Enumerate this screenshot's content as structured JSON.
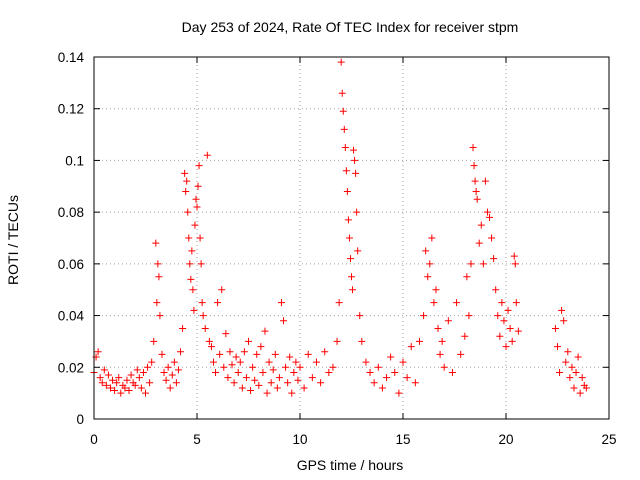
{
  "chart_data": {
    "type": "scatter",
    "title": "Day 253 of 2024, Rate Of TEC Index for receiver stpm",
    "xlabel": "GPS time / hours",
    "ylabel": "ROTI / TECUs",
    "xlim": [
      0,
      25
    ],
    "ylim": [
      0,
      0.14
    ],
    "xticks": [
      0,
      5,
      10,
      15,
      20,
      25
    ],
    "yticks": [
      0,
      0.02,
      0.04,
      0.06,
      0.08,
      0.1,
      0.12,
      0.14
    ],
    "xtick_labels": [
      "0",
      "5",
      "10",
      "15",
      "20",
      "25"
    ],
    "ytick_labels": [
      "0",
      "0.02",
      "0.04",
      "0.06",
      "0.08",
      "0.1",
      "0.12",
      "0.14"
    ],
    "grid": true,
    "marker": "plus",
    "color": "#ff0000",
    "series": [
      {
        "name": "ROTI",
        "points": [
          [
            0.0,
            0.018
          ],
          [
            0.1,
            0.024
          ],
          [
            0.2,
            0.026
          ],
          [
            0.3,
            0.016
          ],
          [
            0.4,
            0.014
          ],
          [
            0.5,
            0.019
          ],
          [
            0.6,
            0.013
          ],
          [
            0.7,
            0.017
          ],
          [
            0.8,
            0.012
          ],
          [
            0.9,
            0.015
          ],
          [
            1.0,
            0.011
          ],
          [
            1.1,
            0.014
          ],
          [
            1.2,
            0.016
          ],
          [
            1.3,
            0.01
          ],
          [
            1.4,
            0.013
          ],
          [
            1.5,
            0.012
          ],
          [
            1.6,
            0.015
          ],
          [
            1.7,
            0.011
          ],
          [
            1.8,
            0.017
          ],
          [
            1.9,
            0.014
          ],
          [
            2.0,
            0.013
          ],
          [
            2.1,
            0.019
          ],
          [
            2.2,
            0.016
          ],
          [
            2.3,
            0.012
          ],
          [
            2.4,
            0.018
          ],
          [
            2.5,
            0.01
          ],
          [
            2.6,
            0.02
          ],
          [
            2.7,
            0.014
          ],
          [
            2.8,
            0.022
          ],
          [
            2.9,
            0.03
          ],
          [
            3.0,
            0.068
          ],
          [
            3.05,
            0.045
          ],
          [
            3.1,
            0.06
          ],
          [
            3.15,
            0.055
          ],
          [
            3.2,
            0.04
          ],
          [
            3.3,
            0.025
          ],
          [
            3.4,
            0.018
          ],
          [
            3.5,
            0.015
          ],
          [
            3.6,
            0.02
          ],
          [
            3.7,
            0.012
          ],
          [
            3.8,
            0.017
          ],
          [
            3.9,
            0.022
          ],
          [
            4.0,
            0.014
          ],
          [
            4.1,
            0.019
          ],
          [
            4.2,
            0.026
          ],
          [
            4.3,
            0.035
          ],
          [
            4.4,
            0.095
          ],
          [
            4.45,
            0.088
          ],
          [
            4.5,
            0.092
          ],
          [
            4.55,
            0.08
          ],
          [
            4.6,
            0.07
          ],
          [
            4.65,
            0.06
          ],
          [
            4.7,
            0.054
          ],
          [
            4.75,
            0.065
          ],
          [
            4.8,
            0.05
          ],
          [
            4.85,
            0.042
          ],
          [
            4.9,
            0.075
          ],
          [
            4.95,
            0.085
          ],
          [
            5.0,
            0.082
          ],
          [
            5.05,
            0.09
          ],
          [
            5.1,
            0.098
          ],
          [
            5.15,
            0.07
          ],
          [
            5.2,
            0.06
          ],
          [
            5.25,
            0.045
          ],
          [
            5.3,
            0.04
          ],
          [
            5.5,
            0.102
          ],
          [
            5.4,
            0.035
          ],
          [
            5.6,
            0.03
          ],
          [
            5.7,
            0.028
          ],
          [
            5.8,
            0.022
          ],
          [
            5.9,
            0.018
          ],
          [
            6.0,
            0.045
          ],
          [
            6.1,
            0.025
          ],
          [
            6.2,
            0.05
          ],
          [
            6.3,
            0.02
          ],
          [
            6.4,
            0.033
          ],
          [
            6.5,
            0.016
          ],
          [
            6.6,
            0.026
          ],
          [
            6.7,
            0.021
          ],
          [
            6.8,
            0.014
          ],
          [
            6.9,
            0.024
          ],
          [
            7.0,
            0.018
          ],
          [
            7.1,
            0.022
          ],
          [
            7.2,
            0.012
          ],
          [
            7.3,
            0.026
          ],
          [
            7.4,
            0.016
          ],
          [
            7.5,
            0.03
          ],
          [
            7.6,
            0.011
          ],
          [
            7.7,
            0.02
          ],
          [
            7.8,
            0.015
          ],
          [
            7.9,
            0.025
          ],
          [
            8.0,
            0.013
          ],
          [
            8.1,
            0.028
          ],
          [
            8.2,
            0.018
          ],
          [
            8.3,
            0.034
          ],
          [
            8.4,
            0.01
          ],
          [
            8.5,
            0.022
          ],
          [
            8.6,
            0.014
          ],
          [
            8.7,
            0.019
          ],
          [
            8.8,
            0.025
          ],
          [
            8.9,
            0.012
          ],
          [
            9.0,
            0.016
          ],
          [
            9.1,
            0.045
          ],
          [
            9.2,
            0.038
          ],
          [
            9.3,
            0.02
          ],
          [
            9.4,
            0.014
          ],
          [
            9.5,
            0.024
          ],
          [
            9.6,
            0.01
          ],
          [
            9.7,
            0.018
          ],
          [
            9.8,
            0.022
          ],
          [
            9.9,
            0.015
          ],
          [
            10.0,
            0.02
          ],
          [
            10.2,
            0.012
          ],
          [
            10.4,
            0.025
          ],
          [
            10.6,
            0.016
          ],
          [
            10.8,
            0.022
          ],
          [
            11.0,
            0.014
          ],
          [
            11.2,
            0.026
          ],
          [
            11.4,
            0.018
          ],
          [
            11.6,
            0.02
          ],
          [
            11.8,
            0.03
          ],
          [
            11.9,
            0.045
          ],
          [
            12.0,
            0.138
          ],
          [
            12.05,
            0.126
          ],
          [
            12.1,
            0.119
          ],
          [
            12.15,
            0.112
          ],
          [
            12.2,
            0.105
          ],
          [
            12.25,
            0.096
          ],
          [
            12.3,
            0.088
          ],
          [
            12.35,
            0.077
          ],
          [
            12.4,
            0.07
          ],
          [
            12.45,
            0.062
          ],
          [
            12.5,
            0.055
          ],
          [
            12.55,
            0.05
          ],
          [
            12.6,
            0.104
          ],
          [
            12.65,
            0.1
          ],
          [
            12.7,
            0.095
          ],
          [
            12.75,
            0.08
          ],
          [
            12.8,
            0.065
          ],
          [
            12.9,
            0.04
          ],
          [
            13.0,
            0.03
          ],
          [
            13.2,
            0.022
          ],
          [
            13.4,
            0.018
          ],
          [
            13.6,
            0.014
          ],
          [
            13.8,
            0.02
          ],
          [
            14.0,
            0.012
          ],
          [
            14.2,
            0.016
          ],
          [
            14.4,
            0.024
          ],
          [
            14.6,
            0.018
          ],
          [
            14.8,
            0.01
          ],
          [
            15.0,
            0.022
          ],
          [
            15.2,
            0.016
          ],
          [
            15.4,
            0.028
          ],
          [
            15.6,
            0.014
          ],
          [
            15.8,
            0.03
          ],
          [
            16.0,
            0.04
          ],
          [
            16.1,
            0.065
          ],
          [
            16.2,
            0.055
          ],
          [
            16.3,
            0.06
          ],
          [
            16.4,
            0.07
          ],
          [
            16.5,
            0.045
          ],
          [
            16.6,
            0.05
          ],
          [
            16.7,
            0.035
          ],
          [
            16.8,
            0.025
          ],
          [
            16.9,
            0.03
          ],
          [
            17.0,
            0.02
          ],
          [
            17.2,
            0.038
          ],
          [
            17.4,
            0.018
          ],
          [
            17.6,
            0.045
          ],
          [
            17.8,
            0.025
          ],
          [
            18.0,
            0.032
          ],
          [
            18.1,
            0.055
          ],
          [
            18.2,
            0.04
          ],
          [
            18.3,
            0.06
          ],
          [
            18.4,
            0.105
          ],
          [
            18.45,
            0.098
          ],
          [
            18.5,
            0.092
          ],
          [
            18.55,
            0.088
          ],
          [
            18.6,
            0.085
          ],
          [
            18.7,
            0.068
          ],
          [
            18.8,
            0.075
          ],
          [
            18.9,
            0.06
          ],
          [
            19.0,
            0.092
          ],
          [
            19.1,
            0.08
          ],
          [
            19.2,
            0.078
          ],
          [
            19.3,
            0.07
          ],
          [
            19.4,
            0.062
          ],
          [
            19.5,
            0.05
          ],
          [
            19.6,
            0.04
          ],
          [
            19.7,
            0.032
          ],
          [
            19.8,
            0.045
          ],
          [
            19.9,
            0.038
          ],
          [
            20.0,
            0.028
          ],
          [
            20.1,
            0.042
          ],
          [
            20.2,
            0.035
          ],
          [
            20.3,
            0.03
          ],
          [
            20.4,
            0.063
          ],
          [
            20.45,
            0.06
          ],
          [
            20.5,
            0.045
          ],
          [
            20.6,
            0.034
          ],
          [
            22.4,
            0.035
          ],
          [
            22.5,
            0.028
          ],
          [
            22.6,
            0.018
          ],
          [
            22.7,
            0.042
          ],
          [
            22.8,
            0.038
          ],
          [
            22.9,
            0.022
          ],
          [
            23.0,
            0.026
          ],
          [
            23.1,
            0.016
          ],
          [
            23.2,
            0.02
          ],
          [
            23.3,
            0.012
          ],
          [
            23.4,
            0.018
          ],
          [
            23.5,
            0.024
          ],
          [
            23.6,
            0.01
          ],
          [
            23.7,
            0.016
          ],
          [
            23.8,
            0.013
          ],
          [
            23.9,
            0.012
          ]
        ]
      }
    ]
  }
}
